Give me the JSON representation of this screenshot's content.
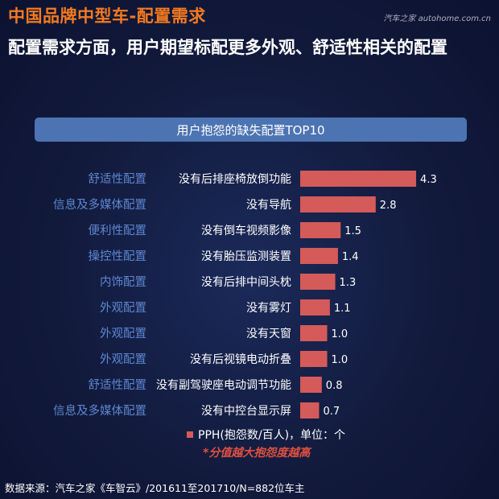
{
  "header": {
    "title": "中国品牌中型车-配置需求",
    "watermark": "汽车之家 autohome.com.cn"
  },
  "headline": "配置需求方面，用户期望标配更多外观、舒适性相关的配置",
  "colors": {
    "title_orange": "#f47a20",
    "bar": "#d55a5a",
    "banner": "#4d74b2",
    "category_text": "#5d87d1",
    "note": "#e0503f"
  },
  "chart_data": {
    "type": "bar",
    "orientation": "horizontal",
    "title": "用户抱怨的缺失配置TOP10",
    "groups": [
      "舒适性配置",
      "信息及多媒体配置",
      "便利性配置",
      "操控性配置",
      "内饰配置",
      "外观配置",
      "外观配置",
      "外观配置",
      "舒适性配置",
      "信息及多媒体配置"
    ],
    "categories": [
      "没有后排座椅放倒功能",
      "没有导航",
      "没有倒车视频影像",
      "没有胎压监测装置",
      "没有后排中间头枕",
      "没有雾灯",
      "没有天窗",
      "没有后视镜电动折叠",
      "没有副驾驶座电动调节功能",
      "没有中控台显示屏"
    ],
    "series": [
      {
        "name": "PPH(抱怨数/百人)，单位：个",
        "values": [
          4.3,
          2.8,
          1.5,
          1.4,
          1.3,
          1.1,
          1.0,
          1.0,
          0.8,
          0.7
        ],
        "labels": [
          "4.3",
          "2.8",
          "1.5",
          "1.4",
          "1.3",
          "1.1",
          "1.0",
          "1.0",
          "0.8",
          "0.7"
        ]
      }
    ],
    "grid": false
  },
  "legend_label": "PPH(抱怨数/百人)，单位：个",
  "note": "*分值越大抱怨度越高",
  "source": "数据来源：汽车之家《车智云》/201611至201710/N=882位车主"
}
